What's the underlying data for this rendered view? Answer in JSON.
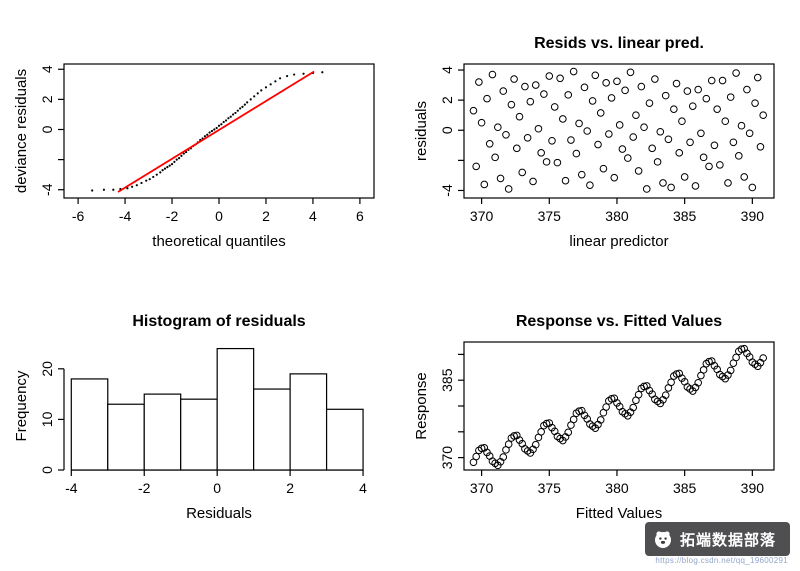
{
  "watermark": {
    "text": "拓端数据部落",
    "url": "https://blog.csdn.net/qq_19600291",
    "bg_color": "rgba(55,55,58,0.88)",
    "text_color": "#ffffff",
    "url_color": "#93a5c9"
  },
  "chart_data": [
    {
      "type": "scatter",
      "title": "",
      "xlabel": "theoretical quantiles",
      "ylabel": "deviance residuals",
      "frame": "box",
      "marker": "dot",
      "xlim": [
        -6.6,
        6.6
      ],
      "ylim": [
        -4.55,
        4.35
      ],
      "xticks": {
        "values": [
          -6,
          -4,
          -2,
          0,
          2,
          4,
          6
        ],
        "labels": [
          "-6",
          "-4",
          "-2",
          "0",
          "2",
          "4",
          "6"
        ]
      },
      "yticks": {
        "values": [
          -4,
          -2,
          0,
          2,
          4
        ],
        "labels": [
          "-4",
          "",
          "0",
          "2",
          "4"
        ]
      },
      "x": [
        -5.4,
        -4.9,
        -4.5,
        -4.2,
        -3.9,
        -3.7,
        -3.5,
        -3.3,
        -3.1,
        -2.95,
        -2.8,
        -2.65,
        -2.5,
        -2.4,
        -2.3,
        -2.2,
        -2.1,
        -2.0,
        -1.9,
        -1.8,
        -1.7,
        -1.6,
        -1.5,
        -1.4,
        -1.3,
        -1.2,
        -1.1,
        -1.0,
        -0.9,
        -0.8,
        -0.7,
        -0.6,
        -0.5,
        -0.4,
        -0.3,
        -0.2,
        -0.1,
        0.0,
        0.1,
        0.2,
        0.3,
        0.4,
        0.5,
        0.6,
        0.7,
        0.8,
        0.9,
        1.0,
        1.1,
        1.2,
        1.35,
        1.5,
        1.65,
        1.8,
        2.0,
        2.2,
        2.4,
        2.6,
        2.9,
        3.2,
        3.6,
        4.0,
        4.4
      ],
      "y": [
        -4.05,
        -4.0,
        -4.0,
        -3.95,
        -3.9,
        -3.8,
        -3.7,
        -3.55,
        -3.4,
        -3.3,
        -3.15,
        -3.0,
        -2.85,
        -2.7,
        -2.6,
        -2.5,
        -2.4,
        -2.3,
        -2.15,
        -2.0,
        -1.9,
        -1.75,
        -1.6,
        -1.5,
        -1.35,
        -1.25,
        -1.1,
        -1.0,
        -0.85,
        -0.7,
        -0.6,
        -0.45,
        -0.35,
        -0.2,
        -0.1,
        0.0,
        0.1,
        0.25,
        0.35,
        0.5,
        0.6,
        0.75,
        0.85,
        1.0,
        1.1,
        1.25,
        1.4,
        1.5,
        1.65,
        1.8,
        2.0,
        2.2,
        2.4,
        2.6,
        2.8,
        3.0,
        3.2,
        3.4,
        3.55,
        3.65,
        3.7,
        3.75,
        3.8
      ],
      "ref_line": {
        "x1": -4.3,
        "y1": -4.15,
        "x2": 4.05,
        "y2": 3.85,
        "color": "#ff0000"
      }
    },
    {
      "type": "scatter",
      "title": "Resids vs. linear pred.",
      "xlabel": "linear predictor",
      "ylabel": "residuals",
      "frame": "box",
      "marker": "circle",
      "xlim": [
        368.7,
        391.6
      ],
      "ylim": [
        -4.5,
        4.4
      ],
      "xticks": {
        "values": [
          370,
          375,
          380,
          385,
          390
        ],
        "labels": [
          "370",
          "375",
          "380",
          "385",
          "390"
        ]
      },
      "yticks": {
        "values": [
          -4,
          -2,
          0,
          2,
          4
        ],
        "labels": [
          "-4",
          "",
          "0",
          "2",
          "4"
        ]
      },
      "x": [
        369.4,
        369.6,
        369.8,
        370.0,
        370.2,
        370.4,
        370.6,
        370.8,
        371.0,
        371.2,
        371.4,
        371.6,
        371.8,
        372.0,
        372.2,
        372.4,
        372.6,
        372.8,
        373.0,
        373.2,
        373.4,
        373.6,
        373.8,
        374.0,
        374.2,
        374.4,
        374.6,
        374.8,
        375.0,
        375.2,
        375.4,
        375.6,
        375.8,
        376.0,
        376.2,
        376.4,
        376.6,
        376.8,
        377.0,
        377.2,
        377.4,
        377.6,
        377.8,
        378.0,
        378.2,
        378.4,
        378.6,
        378.8,
        379.0,
        379.2,
        379.4,
        379.6,
        379.8,
        380.0,
        380.2,
        380.4,
        380.6,
        380.8,
        381.0,
        381.2,
        381.4,
        381.6,
        381.8,
        382.0,
        382.2,
        382.4,
        382.6,
        382.8,
        383.0,
        383.2,
        383.4,
        383.6,
        383.8,
        384.0,
        384.2,
        384.4,
        384.6,
        384.8,
        385.0,
        385.2,
        385.4,
        385.6,
        385.8,
        386.0,
        386.2,
        386.4,
        386.6,
        386.8,
        387.0,
        387.2,
        387.4,
        387.6,
        387.8,
        388.0,
        388.2,
        388.4,
        388.6,
        388.8,
        389.0,
        389.2,
        389.4,
        389.6,
        389.8,
        390.0,
        390.2,
        390.4,
        390.6,
        390.8
      ],
      "y": [
        1.3,
        -2.4,
        3.2,
        0.5,
        -3.6,
        2.1,
        -0.9,
        3.7,
        -1.8,
        0.2,
        -3.2,
        2.6,
        -0.3,
        -3.9,
        1.7,
        3.4,
        -1.2,
        0.9,
        -2.8,
        2.9,
        -0.5,
        1.9,
        -3.4,
        3.0,
        0.1,
        -1.5,
        2.4,
        -2.1,
        3.6,
        -0.7,
        1.55,
        -2.15,
        3.45,
        0.75,
        -3.35,
        2.35,
        -0.65,
        3.9,
        -1.55,
        0.45,
        -2.95,
        2.85,
        -0.05,
        -3.65,
        1.95,
        3.65,
        -0.95,
        1.15,
        -2.55,
        3.15,
        -0.25,
        2.15,
        -3.15,
        3.25,
        0.35,
        -1.25,
        2.65,
        -1.85,
        3.85,
        -0.45,
        1.0,
        -2.7,
        2.9,
        0.2,
        -3.9,
        1.8,
        -1.2,
        3.4,
        -2.1,
        -0.1,
        -3.5,
        2.3,
        -0.6,
        -3.8,
        1.4,
        3.1,
        -1.5,
        0.6,
        -3.1,
        2.6,
        -0.8,
        1.6,
        -3.7,
        2.7,
        -0.2,
        -1.8,
        2.1,
        -2.4,
        3.3,
        -1.0,
        1.4,
        -2.3,
        3.3,
        0.6,
        -3.5,
        2.2,
        -0.8,
        3.8,
        -1.7,
        0.3,
        -3.1,
        2.7,
        -0.2,
        -3.8,
        1.8,
        3.5,
        -1.1,
        1.0
      ]
    },
    {
      "type": "histogram",
      "title": "Histogram of residuals",
      "xlabel": "Residuals",
      "ylabel": "Frequency",
      "frame": "axes",
      "xlim": [
        -4.2,
        4.3
      ],
      "ylim": [
        0,
        25.3
      ],
      "xticks": {
        "values": [
          -4,
          -2,
          0,
          2,
          4
        ],
        "labels": [
          "-4",
          "-2",
          "0",
          "2",
          "4"
        ]
      },
      "yticks": {
        "values": [
          0,
          10,
          20
        ],
        "labels": [
          "0",
          "10",
          "20"
        ]
      },
      "breaks": [
        -4,
        -3,
        -2,
        -1,
        0,
        1,
        2,
        3,
        4
      ],
      "counts": [
        18,
        13,
        15,
        14,
        24,
        16,
        19,
        12
      ]
    },
    {
      "type": "scatter",
      "title": "Response vs. Fitted Values",
      "xlabel": "Fitted Values",
      "ylabel": "Response",
      "frame": "box",
      "marker": "circle",
      "xlim": [
        368.7,
        391.6
      ],
      "ylim": [
        367.6,
        392.4
      ],
      "xticks": {
        "values": [
          370,
          375,
          380,
          385,
          390
        ],
        "labels": [
          "370",
          "375",
          "380",
          "385",
          "390"
        ]
      },
      "yticks": {
        "values": [
          370,
          375,
          380,
          385,
          390
        ],
        "labels": [
          "370",
          "",
          "",
          "385",
          ""
        ]
      },
      "x": [
        369.4,
        369.6,
        369.8,
        370.0,
        370.2,
        370.4,
        370.6,
        370.8,
        371.0,
        371.2,
        371.4,
        371.6,
        371.8,
        372.0,
        372.2,
        372.4,
        372.6,
        372.8,
        373.0,
        373.2,
        373.4,
        373.6,
        373.8,
        374.0,
        374.2,
        374.4,
        374.6,
        374.8,
        375.0,
        375.2,
        375.4,
        375.6,
        375.8,
        376.0,
        376.2,
        376.4,
        376.6,
        376.8,
        377.0,
        377.2,
        377.4,
        377.6,
        377.8,
        378.0,
        378.2,
        378.4,
        378.6,
        378.8,
        379.0,
        379.2,
        379.4,
        379.6,
        379.8,
        380.0,
        380.2,
        380.4,
        380.6,
        380.8,
        381.0,
        381.2,
        381.4,
        381.6,
        381.8,
        382.0,
        382.2,
        382.4,
        382.6,
        382.8,
        383.0,
        383.2,
        383.4,
        383.6,
        383.8,
        384.0,
        384.2,
        384.4,
        384.6,
        384.8,
        385.0,
        385.2,
        385.4,
        385.6,
        385.8,
        386.0,
        386.2,
        386.4,
        386.6,
        386.8,
        387.0,
        387.2,
        387.4,
        387.6,
        387.8,
        388.0,
        388.2,
        388.4,
        388.6,
        388.8,
        389.0,
        389.2,
        389.4,
        389.6,
        389.8,
        390.0,
        390.2,
        390.4,
        390.6,
        390.8
      ],
      "y": [
        369.1,
        370.2,
        371.4,
        371.8,
        371.9,
        371.0,
        370.3,
        369.3,
        368.9,
        368.5,
        369.2,
        370.1,
        371.5,
        372.6,
        373.8,
        374.2,
        374.3,
        373.4,
        372.7,
        371.7,
        371.3,
        370.9,
        371.6,
        372.5,
        373.9,
        375.0,
        376.2,
        376.6,
        376.7,
        375.8,
        375.1,
        374.1,
        373.7,
        373.3,
        374.0,
        374.9,
        376.3,
        377.4,
        378.6,
        379.0,
        379.1,
        378.2,
        377.5,
        376.5,
        376.1,
        375.7,
        376.4,
        377.3,
        378.7,
        379.8,
        381.0,
        381.4,
        381.5,
        380.6,
        379.9,
        378.9,
        378.5,
        378.1,
        378.8,
        379.7,
        381.1,
        382.2,
        383.4,
        383.8,
        383.9,
        383.0,
        382.3,
        381.3,
        380.9,
        380.5,
        381.2,
        382.1,
        383.5,
        384.6,
        385.8,
        386.2,
        386.3,
        385.4,
        384.7,
        383.7,
        383.3,
        382.9,
        383.6,
        384.5,
        385.9,
        387.0,
        388.2,
        388.6,
        388.7,
        387.8,
        387.1,
        386.1,
        385.7,
        385.3,
        386.0,
        386.9,
        388.3,
        389.4,
        390.6,
        391.0,
        391.1,
        390.2,
        389.5,
        388.5,
        388.1,
        387.7,
        388.4,
        389.3
      ]
    }
  ]
}
